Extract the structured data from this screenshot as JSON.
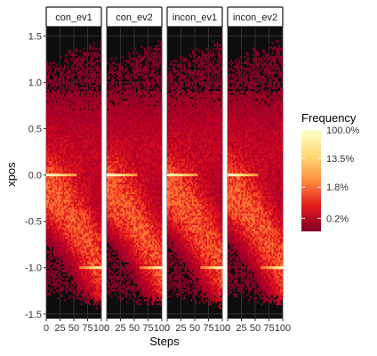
{
  "chart_data": {
    "type": "heatmap",
    "facets": [
      "con_ev1",
      "con_ev2",
      "incon_ev1",
      "incon_ev2"
    ],
    "xlabel": "Steps",
    "ylabel": "xpos",
    "xlim": [
      0,
      100
    ],
    "ylim": [
      -1.55,
      1.6
    ],
    "x_tick_labels": [
      "0",
      "25",
      "50",
      "75",
      "100"
    ],
    "x_ticks": [
      0,
      25,
      50,
      75,
      100
    ],
    "y_tick_labels": [
      "-1.5",
      "-1.0",
      "-0.5",
      "0.0",
      "0.5",
      "1.0",
      "1.5"
    ],
    "y_ticks": [
      -1.5,
      -1.0,
      -0.5,
      0.0,
      0.5,
      1.0,
      1.5
    ],
    "grid": true,
    "panel_background": "#0d0d0d",
    "legend": {
      "title": "Frequency",
      "position": "right",
      "labels": [
        "100.0%",
        "13.5%",
        "1.8%",
        "0.2%"
      ],
      "breaks": [
        1.0,
        0.135,
        0.018,
        0.002
      ],
      "scale": "log",
      "colors": [
        "#800026",
        "#e31a1c",
        "#fd8d3c",
        "#fed976",
        "#ffffcc"
      ]
    },
    "density_description": {
      "start_value": 0.0,
      "end_values": [
        1.0,
        -1.0
      ],
      "dominant_end": -1.0
    }
  }
}
